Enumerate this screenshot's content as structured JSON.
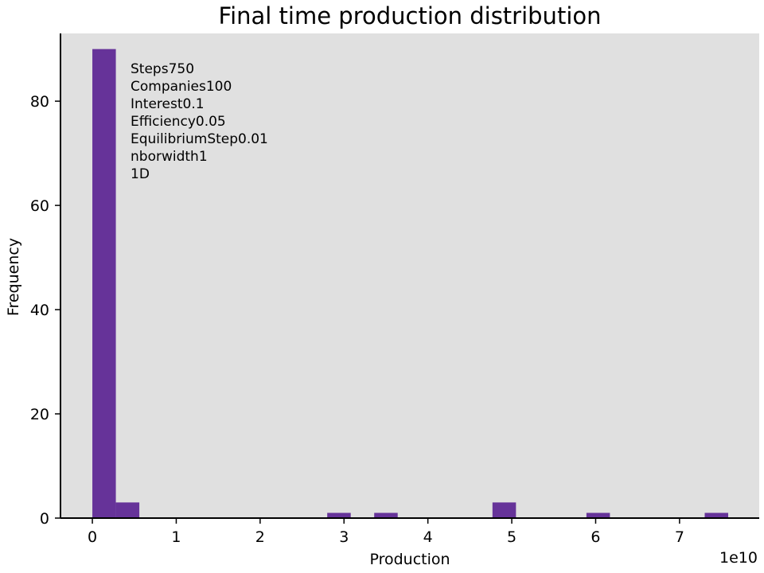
{
  "chart_data": {
    "type": "bar",
    "title": "Final time production distribution",
    "xlabel": "Production",
    "ylabel": "Frequency",
    "x_offset_label": "1e10",
    "xlim": [
      -0.38,
      7.95
    ],
    "ylim": [
      0,
      93
    ],
    "x_ticks": [
      0,
      1,
      2,
      3,
      4,
      5,
      6,
      7
    ],
    "y_ticks": [
      0,
      20,
      40,
      60,
      80
    ],
    "bin_width": 0.28,
    "bins": [
      {
        "x0": 0.0,
        "value": 90
      },
      {
        "x0": 0.28,
        "value": 3
      },
      {
        "x0": 2.8,
        "value": 1
      },
      {
        "x0": 3.36,
        "value": 1
      },
      {
        "x0": 4.77,
        "value": 3
      },
      {
        "x0": 5.89,
        "value": 1
      },
      {
        "x0": 7.3,
        "value": 1
      }
    ],
    "annotation": [
      "Steps750",
      "Companies100",
      "Interest0.1",
      "Efficiency0.05",
      "EquilibriumStep0.01",
      "nborwidth1",
      "1D"
    ],
    "colors": {
      "bar": "#663399",
      "plot_bg": "#e0e0e0",
      "axis": "#000000"
    },
    "grid": false,
    "legend": "none"
  }
}
